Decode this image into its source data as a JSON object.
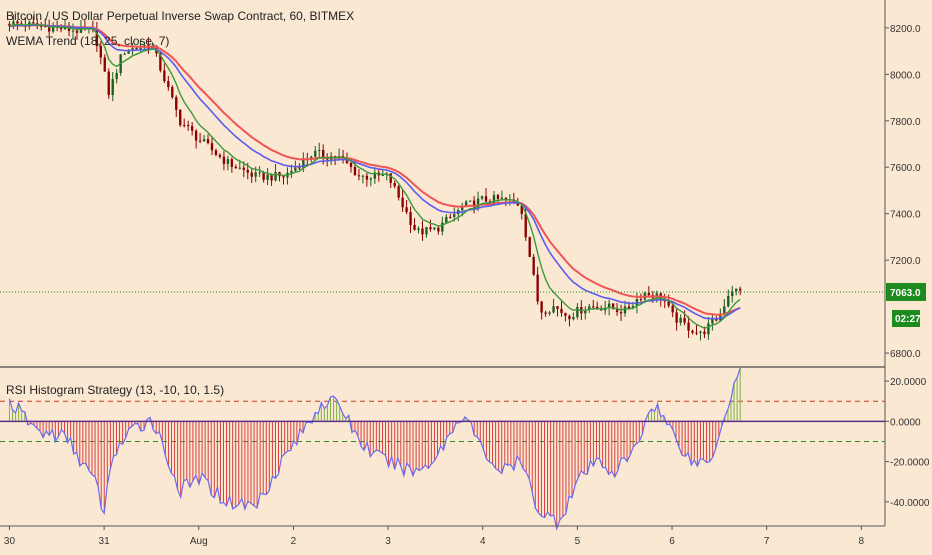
{
  "header": {
    "title": "Bitcoin / US Dollar Perpetual Inverse Swap Contract, 60, BITMEX",
    "indicator_label": "WEMA Trend (18, 25, close, 7)",
    "oscillator_label": "RSI Histogram Strategy (13, -10, 10, 1.5)"
  },
  "price_badge": "7063.0",
  "timer_badge": "02:27",
  "colors": {
    "background": "#fbe8d2",
    "candle_up": "#1b5e20",
    "candle_down": "#8b0000",
    "ema_red": "#f05454",
    "ema_blue": "#5b5bf0",
    "ema_green": "#3a9a3a",
    "badge_green": "#1e8b1e",
    "hist_red": "#d94040",
    "hist_green": "#7db344",
    "rsi_line": "#6a6af0",
    "upper_band": "#c0392b",
    "lower_band": "#2e8b2e",
    "zero_line": "#5b2d8e"
  },
  "chart_data": [
    {
      "type": "candlestick",
      "title": "Bitcoin / US Dollar Perpetual Inverse Swap Contract, 60, BITMEX",
      "y_tick_labels": [
        "8200.0",
        "8000.0",
        "7800.0",
        "7600.0",
        "7400.0",
        "7200.0",
        "6800.0"
      ],
      "y_ticks": [
        8200,
        8000,
        7800,
        7600,
        7400,
        7200,
        6800
      ],
      "ylim": [
        6740,
        8320
      ],
      "x_tick_labels": [
        "30",
        "31",
        "Aug",
        "2",
        "3",
        "4",
        "5",
        "6",
        "7",
        "8"
      ],
      "x": [
        0,
        1,
        2,
        3,
        4,
        5,
        6,
        7,
        8,
        9
      ],
      "xlim": [
        -0.1,
        9.25
      ],
      "last_price": 7063.0,
      "close_path": {
        "x": [
          0,
          0.5,
          0.9,
          1.05,
          1.2,
          1.5,
          1.8,
          2.0,
          2.3,
          2.6,
          2.9,
          3.2,
          3.5,
          3.7,
          4.0,
          4.3,
          4.5,
          4.8,
          5.0,
          5.2,
          5.4,
          5.6,
          5.75,
          5.9,
          6.1,
          6.3,
          6.5,
          6.7,
          6.9,
          7.0,
          7.1,
          7.3,
          7.5,
          7.62,
          7.7
        ],
        "y": [
          8220,
          8200,
          8180,
          7920,
          8100,
          8130,
          7800,
          7720,
          7620,
          7560,
          7560,
          7660,
          7640,
          7560,
          7560,
          7320,
          7330,
          7430,
          7460,
          7460,
          7440,
          6980,
          7000,
          6960,
          7000,
          7000,
          6980,
          7060,
          7040,
          6960,
          6930,
          6880,
          6960,
          7080,
          7063
        ]
      },
      "series": [
        {
          "name": "WEMA Trend (18, 25, close, 7)",
          "x": [
            0,
            1.0,
            1.5,
            1.8,
            2.0,
            2.3,
            2.6,
            2.9,
            3.2,
            3.5,
            3.8,
            4.1,
            4.4,
            4.7,
            5.0,
            5.3,
            5.6,
            5.9,
            6.2,
            6.5,
            6.8,
            7.1,
            7.4,
            7.6,
            7.7
          ],
          "values": [
            8230,
            8170,
            8140,
            7980,
            7850,
            7720,
            7630,
            7570,
            7610,
            7650,
            7600,
            7520,
            7450,
            7430,
            7450,
            7440,
            7160,
            7040,
            7020,
            7020,
            7030,
            6980,
            6940,
            6950,
            6990
          ]
        }
      ]
    },
    {
      "type": "bar",
      "title": "RSI Histogram Strategy (13, -10, 10, 1.5)",
      "y_tick_labels": [
        "20.0000",
        "0.0000",
        "-20.0000",
        "-40.0000"
      ],
      "y_ticks": [
        20,
        0,
        -20,
        -40
      ],
      "ylim": [
        -52,
        27
      ],
      "upper_level": 10,
      "lower_level": -10,
      "x": [
        0,
        0.3,
        0.6,
        0.9,
        1.0,
        1.1,
        1.3,
        1.5,
        1.7,
        1.8,
        2.0,
        2.3,
        2.6,
        2.9,
        3.1,
        3.3,
        3.5,
        3.7,
        3.9,
        4.1,
        4.3,
        4.5,
        4.8,
        5.0,
        5.2,
        5.4,
        5.6,
        5.8,
        6.0,
        6.2,
        6.4,
        6.6,
        6.8,
        7.0,
        7.2,
        7.4,
        7.6,
        7.7
      ],
      "values": [
        10,
        -5,
        -8,
        -30,
        -45,
        -15,
        -5,
        2,
        -22,
        -35,
        -28,
        -40,
        -42,
        -18,
        -5,
        10,
        8,
        -10,
        -18,
        -22,
        -25,
        -18,
        5,
        -15,
        -25,
        -20,
        -45,
        -50,
        -30,
        -20,
        -25,
        -15,
        10,
        -5,
        -20,
        -20,
        10,
        25
      ]
    }
  ]
}
